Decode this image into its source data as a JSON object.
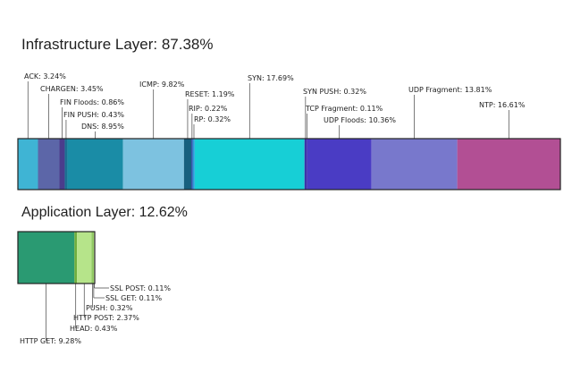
{
  "infrastructure": {
    "title": "Infrastructure Layer: 87.38%"
  },
  "application": {
    "title": "Application Layer: 12.62%"
  },
  "chart_data": [
    {
      "type": "bar",
      "title": "Infrastructure Layer: 87.38%",
      "total": 87.38,
      "orientation": "horizontal-stacked",
      "segments": [
        {
          "label": "ACK: 3.24%",
          "value": 3.24,
          "color": "#3fb4d4"
        },
        {
          "label": "CHARGEN: 3.45%",
          "value": 3.45,
          "color": "#5c66a8"
        },
        {
          "label": "FIN Floods: 0.86%",
          "value": 0.86,
          "color": "#4a3c8c"
        },
        {
          "label": "FIN PUSH: 0.43%",
          "value": 0.43,
          "color": "#1c6f92"
        },
        {
          "label": "DNS: 8.95%",
          "value": 8.95,
          "color": "#1a8ca6"
        },
        {
          "label": "ICMP: 9.82%",
          "value": 9.82,
          "color": "#7dc2e0"
        },
        {
          "label": "RESET: 1.19%",
          "value": 1.19,
          "color": "#17607e"
        },
        {
          "label": "RIP: 0.22%",
          "value": 0.22,
          "color": "#2a4aa8"
        },
        {
          "label": "RP: 0.32%",
          "value": 0.32,
          "color": "#2f9adb"
        },
        {
          "label": "SYN: 17.69%",
          "value": 17.69,
          "color": "#17cfd6"
        },
        {
          "label": "SYN PUSH: 0.32%",
          "value": 0.32,
          "color": "#3b2ea8"
        },
        {
          "label": "TCP Fragment: 0.11%",
          "value": 0.11,
          "color": "#3a2ca2"
        },
        {
          "label": "UDP Floods: 10.36%",
          "value": 10.36,
          "color": "#4a3cc4"
        },
        {
          "label": "UDP Fragment: 13.81%",
          "value": 13.81,
          "color": "#7878cc"
        },
        {
          "label": "NTP: 16.61%",
          "value": 16.61,
          "color": "#b24f94"
        }
      ]
    },
    {
      "type": "bar",
      "title": "Application Layer: 12.62%",
      "total": 12.62,
      "orientation": "horizontal-stacked",
      "segments": [
        {
          "label": "HTTP GET: 9.28%",
          "value": 9.28,
          "color": "#2a9a72"
        },
        {
          "label": "HEAD: 0.43%",
          "value": 0.43,
          "color": "#6fae3e"
        },
        {
          "label": "HTTP POST: 2.37%",
          "value": 2.37,
          "color": "#b6e48a"
        },
        {
          "label": "PUSH:  0.32%",
          "value": 0.32,
          "color": "#8fc862"
        },
        {
          "label": "SSL GET: 0.11%",
          "value": 0.11,
          "color": "#a4d66e"
        },
        {
          "label": "SSL POST: 0.11%",
          "value": 0.11,
          "color": "#c6e89a"
        }
      ]
    }
  ]
}
